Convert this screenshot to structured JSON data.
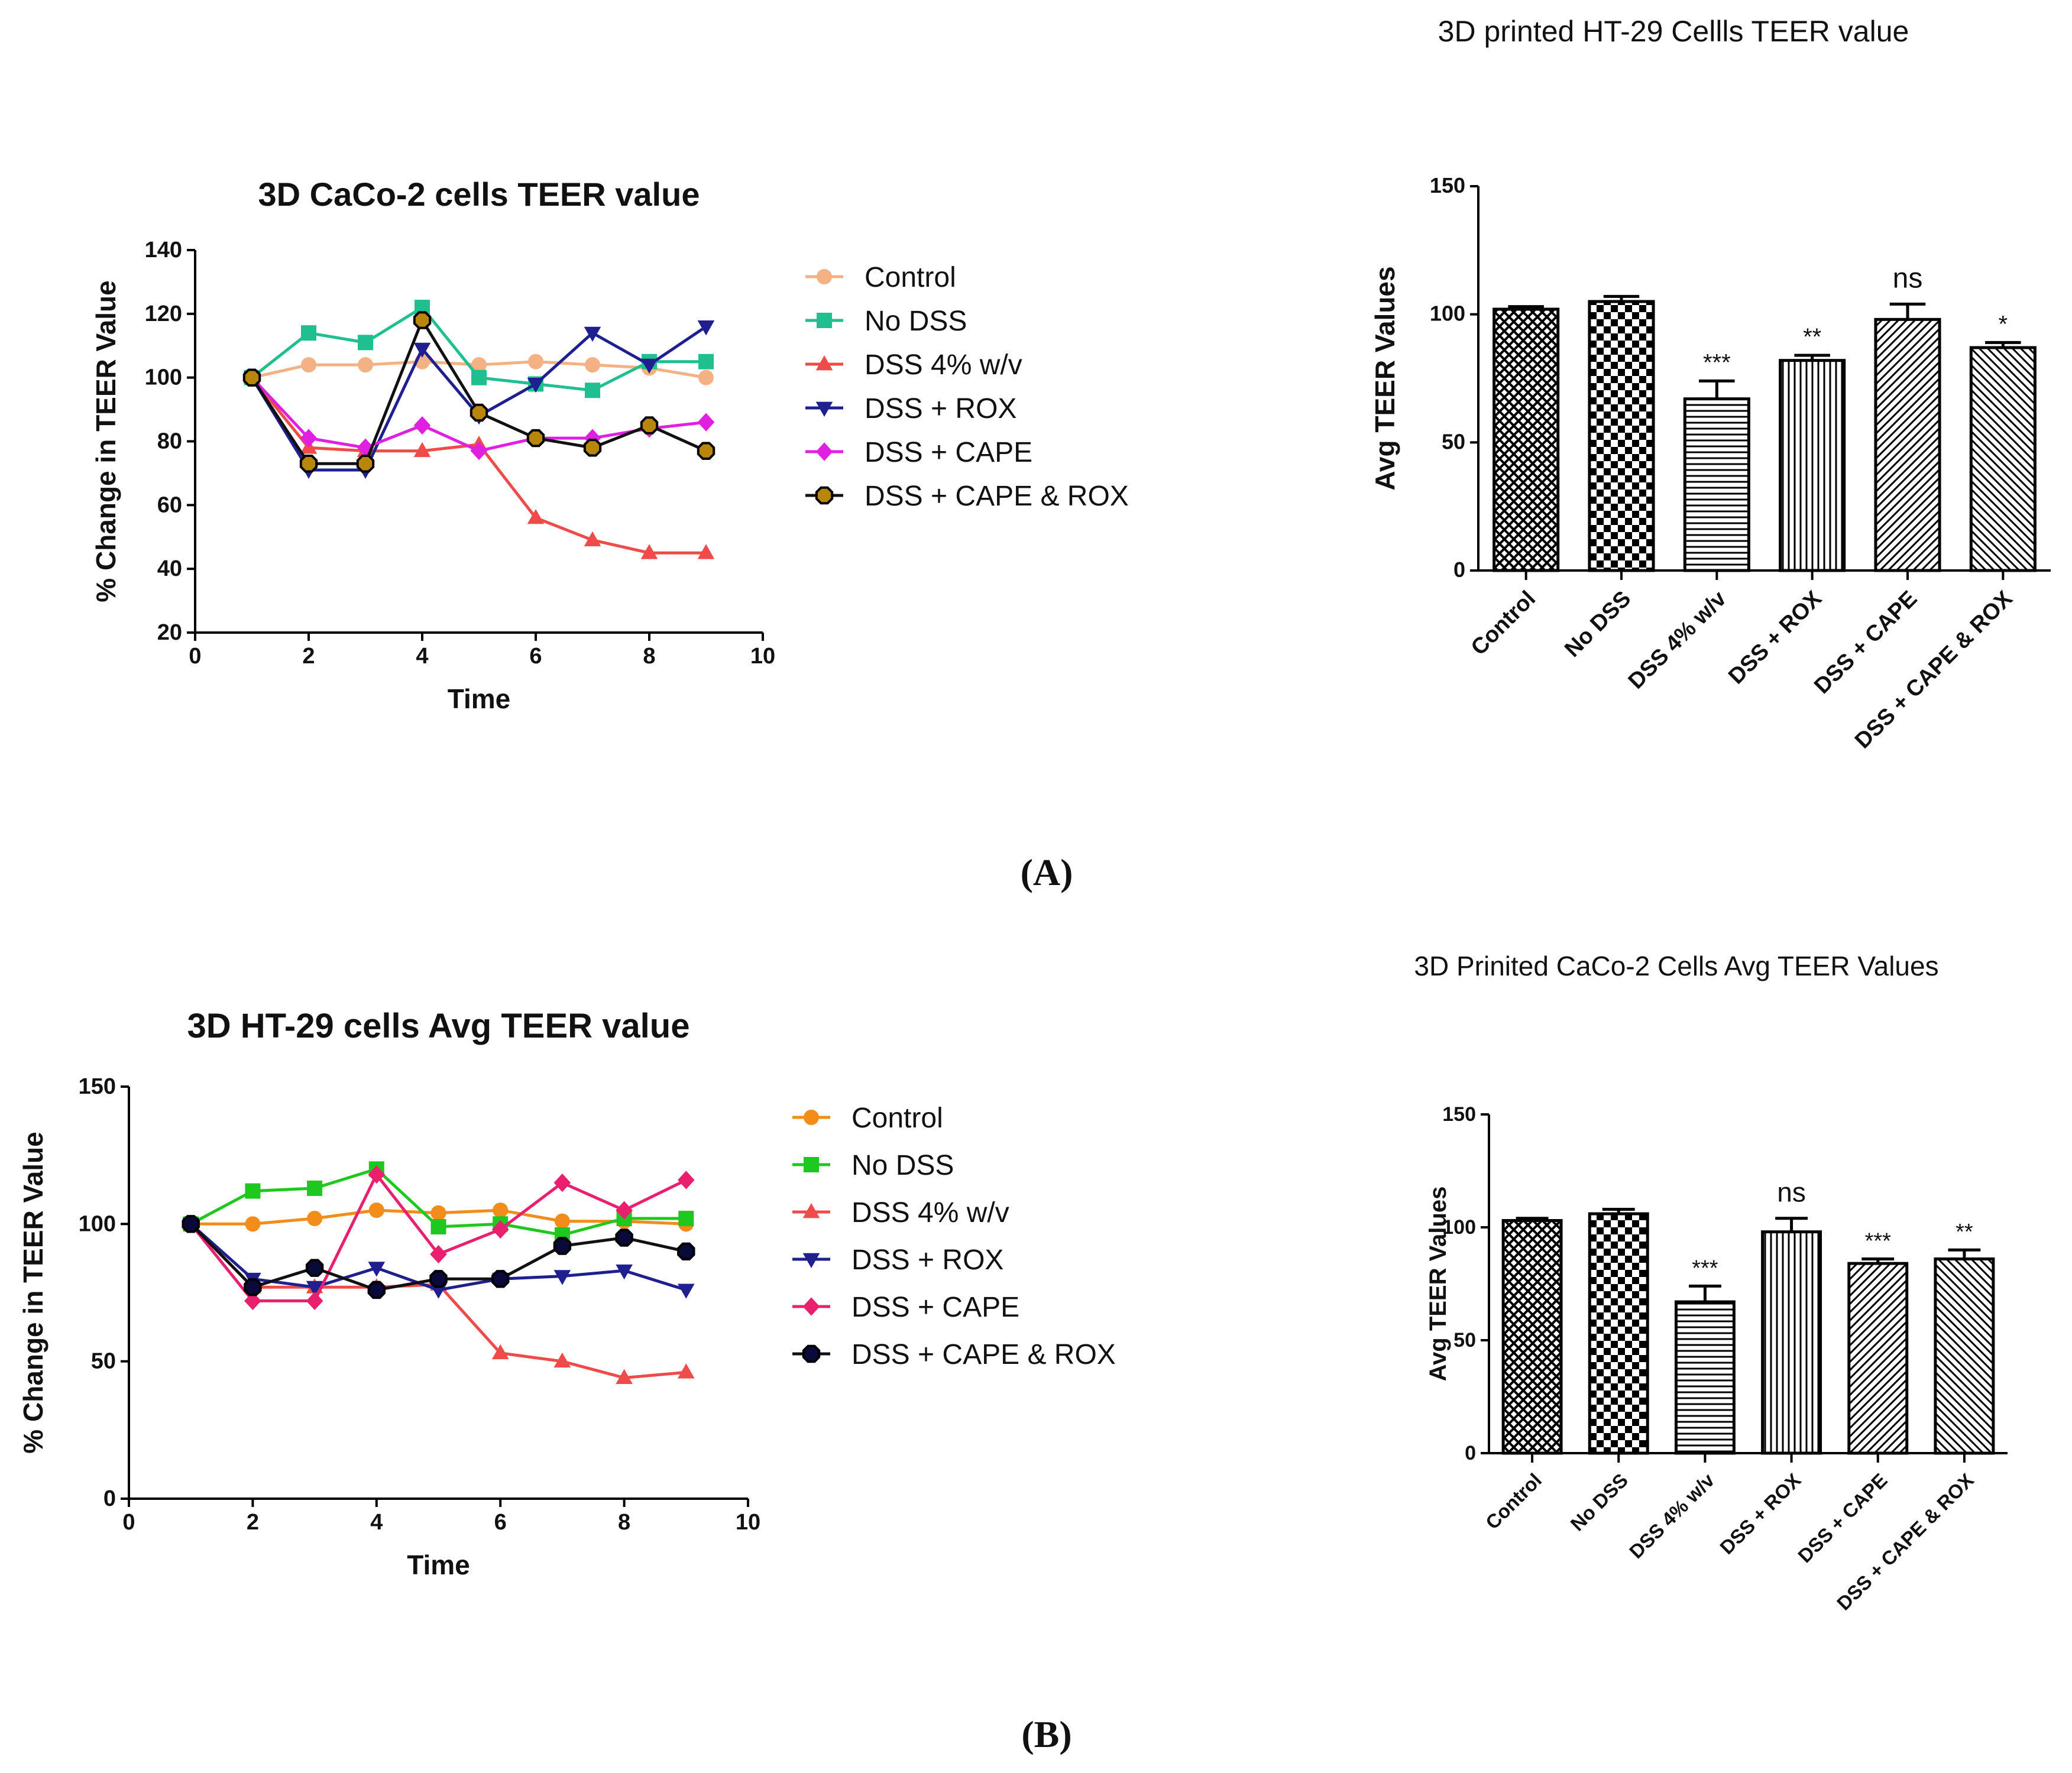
{
  "panel_labels": {
    "a": "(A)",
    "b": "(B)"
  },
  "chart_data": [
    {
      "id": "line_a",
      "type": "line",
      "title": "3D CaCo-2 cells TEER value",
      "xlabel": "Time",
      "ylabel": "% Change in TEER Value",
      "xlim": [
        0,
        10
      ],
      "ylim": [
        20,
        140
      ],
      "xticks": [
        0,
        2,
        4,
        6,
        8,
        10
      ],
      "yticks": [
        20,
        40,
        60,
        80,
        100,
        120,
        140
      ],
      "x": [
        1,
        2,
        3,
        4,
        5,
        6,
        7,
        8,
        9
      ],
      "series": [
        {
          "name": "Control",
          "color": "#F4B183",
          "marker": "circle",
          "values": [
            100,
            104,
            104,
            105,
            104,
            105,
            104,
            103,
            100
          ]
        },
        {
          "name": "No DSS",
          "color": "#1FBF8F",
          "marker": "square",
          "values": [
            100,
            114,
            111,
            122,
            100,
            98,
            96,
            105,
            105
          ]
        },
        {
          "name": "DSS 4% w/v",
          "color": "#F04B4B",
          "marker": "triangle-up",
          "values": [
            100,
            78,
            77,
            77,
            79,
            56,
            49,
            45,
            45
          ]
        },
        {
          "name": "DSS + ROX",
          "color": "#1F1F8F",
          "marker": "triangle-down",
          "values": [
            100,
            71,
            71,
            109,
            88,
            98,
            114,
            104,
            116
          ]
        },
        {
          "name": "DSS + CAPE",
          "color": "#E020E0",
          "marker": "diamond",
          "values": [
            100,
            81,
            78,
            85,
            77,
            81,
            81,
            84,
            86
          ]
        },
        {
          "name": "DSS + CAPE & ROX",
          "color": "#111111",
          "marker": "octagon-outline",
          "values": [
            100,
            73,
            73,
            118,
            89,
            81,
            78,
            85,
            77
          ]
        }
      ]
    },
    {
      "id": "bar_a",
      "type": "bar",
      "title": "3D printed HT-29 Cellls TEER value",
      "ylabel": "Avg TEER Values",
      "ylim": [
        0,
        150
      ],
      "yticks": [
        0,
        50,
        100,
        150
      ],
      "categories": [
        "Control",
        "No DSS",
        "DSS 4% w/v",
        "DSS + ROX",
        "DSS + CAPE",
        "DSS + CAPE & ROX"
      ],
      "values": [
        102,
        105,
        67,
        82,
        98,
        87
      ],
      "errors": [
        1,
        2,
        7,
        2,
        6,
        2
      ],
      "patterns": [
        "crosshatch",
        "checker",
        "horizontal",
        "vertical",
        "diag-left",
        "diag-right"
      ],
      "annotations": [
        "",
        "",
        "***",
        "**",
        "ns",
        "*"
      ]
    },
    {
      "id": "line_b",
      "type": "line",
      "title": "3D HT-29 cells Avg TEER value",
      "xlabel": "Time",
      "ylabel": "% Change in TEER Value",
      "xlim": [
        0,
        10
      ],
      "ylim": [
        0,
        150
      ],
      "xticks": [
        0,
        2,
        4,
        6,
        8,
        10
      ],
      "yticks": [
        0,
        50,
        100,
        150
      ],
      "x": [
        1,
        2,
        3,
        4,
        5,
        6,
        7,
        8,
        9
      ],
      "series": [
        {
          "name": "Control",
          "color": "#F28C1A",
          "marker": "circle",
          "values": [
            100,
            100,
            102,
            105,
            104,
            105,
            101,
            101,
            100
          ]
        },
        {
          "name": "No DSS",
          "color": "#1FC81F",
          "marker": "square",
          "values": [
            100,
            112,
            113,
            120,
            99,
            100,
            96,
            102,
            102
          ]
        },
        {
          "name": "DSS 4% w/v",
          "color": "#F04B4B",
          "marker": "triangle-up",
          "values": [
            100,
            77,
            77,
            77,
            78,
            53,
            50,
            44,
            46
          ]
        },
        {
          "name": "DSS + ROX",
          "color": "#1F1F8F",
          "marker": "triangle-down",
          "values": [
            100,
            80,
            77,
            84,
            76,
            80,
            81,
            83,
            76
          ]
        },
        {
          "name": "DSS + CAPE",
          "color": "#E8206E",
          "marker": "diamond",
          "values": [
            100,
            72,
            72,
            118,
            89,
            98,
            115,
            105,
            116
          ]
        },
        {
          "name": "DSS + CAPE & ROX",
          "color": "#111111",
          "marker": "octagon-filled",
          "values": [
            100,
            77,
            84,
            76,
            80,
            80,
            92,
            95,
            90
          ]
        }
      ]
    },
    {
      "id": "bar_b",
      "type": "bar",
      "title": "3D Prinited CaCo-2 Cells Avg TEER Values",
      "ylabel": "Avg TEER Values",
      "ylim": [
        0,
        150
      ],
      "yticks": [
        0,
        50,
        100,
        150
      ],
      "categories": [
        "Control",
        "No DSS",
        "DSS 4% w/v",
        "DSS + ROX",
        "DSS + CAPE",
        "DSS + CAPE & ROX"
      ],
      "values": [
        103,
        106,
        67,
        98,
        84,
        86
      ],
      "errors": [
        1,
        2,
        7,
        6,
        2,
        4
      ],
      "patterns": [
        "crosshatch",
        "checker",
        "horizontal",
        "vertical",
        "diag-left",
        "diag-right"
      ],
      "annotations": [
        "",
        "",
        "***",
        "ns",
        "***",
        "**"
      ]
    }
  ]
}
